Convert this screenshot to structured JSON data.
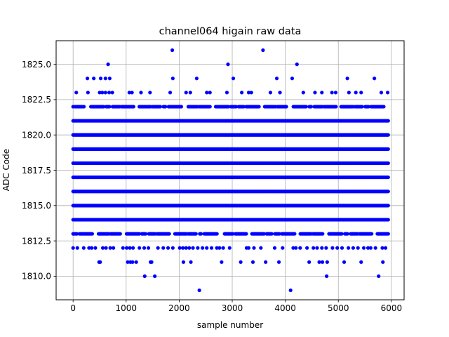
{
  "chart_data": {
    "type": "scatter",
    "title": "channel064 higain raw data",
    "xlabel": "sample number",
    "ylabel": "ADC Code",
    "xlim": [
      -320,
      6240
    ],
    "ylim": [
      1808.33,
      1826.67
    ],
    "xticks": [
      0,
      1000,
      2000,
      3000,
      4000,
      5000,
      6000
    ],
    "xtick_labels": [
      "0",
      "1000",
      "2000",
      "3000",
      "4000",
      "5000",
      "6000"
    ],
    "yticks": [
      1810.0,
      1812.5,
      1815.0,
      1817.5,
      1820.0,
      1822.5,
      1825.0
    ],
    "ytick_labels": [
      "1810.0",
      "1812.5",
      "1815.0",
      "1817.5",
      "1820.0",
      "1822.5",
      "1825.0"
    ],
    "grid": true,
    "marker_color": "#0000ff",
    "x_range_of_samples": [
      0,
      5940
    ],
    "dense_levels": [
      1813,
      1814,
      1815,
      1816,
      1817,
      1818,
      1819,
      1820,
      1821,
      1822
    ],
    "sparse_points": {
      "1826": [
        1870,
        3580
      ],
      "1825": [
        660,
        2920,
        4220
      ],
      "1824": [
        270,
        390,
        520,
        610,
        690,
        1880,
        2330,
        3020,
        3840,
        4130,
        5170,
        5680
      ],
      "1823": [
        60,
        280,
        500,
        550,
        610,
        680,
        740,
        1060,
        1110,
        1280,
        1450,
        1830,
        2130,
        2210,
        2520,
        2580,
        2900,
        3180,
        3310,
        3360,
        3720,
        3900,
        4340,
        4560,
        4690,
        4880,
        4950,
        5200,
        5330,
        5430,
        5810,
        5930
      ],
      "1812": [
        0,
        80,
        200,
        300,
        350,
        420,
        560,
        620,
        700,
        760,
        940,
        1010,
        1070,
        1130,
        1250,
        1340,
        1420,
        1600,
        1700,
        1790,
        1880,
        2010,
        2070,
        2130,
        2190,
        2260,
        2350,
        2440,
        2520,
        2610,
        2710,
        2760,
        2830,
        2950,
        3270,
        3310,
        3410,
        3540,
        3800,
        3950,
        4150,
        4200,
        4280,
        4410,
        4530,
        4600,
        4690,
        4770,
        4890,
        4980,
        5070,
        5190,
        5280,
        5370,
        5480,
        5560,
        5610,
        5700,
        5830,
        5890
      ],
      "1811": [
        490,
        510,
        1030,
        1080,
        1120,
        1190,
        1460,
        1480,
        2080,
        2220,
        2800,
        3160,
        3390,
        3630,
        3880,
        4450,
        4640,
        4700,
        4790,
        5110,
        5430,
        5840
      ],
      "1810": [
        1350,
        1540,
        4780,
        5760
      ],
      "1809": [
        2380,
        4100
      ]
    }
  }
}
